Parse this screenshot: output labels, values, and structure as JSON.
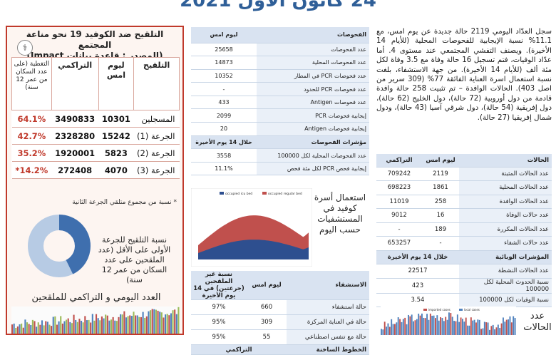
{
  "page_title": "24 كانون الأول 2021",
  "vaccination": {
    "heading_line1": "التلقيح ضد الكوفيد 19  نحو مناعة المجتمع",
    "heading_line2": "(المصدر : قاعدة بيانات Impact)",
    "headers": {
      "label": "التلقيح",
      "yesterday": "ليوم امس",
      "cumulative": "التراكمي",
      "coverage": "التغطية (على عدد السكان من عمر 12 سنة)"
    },
    "rows": [
      {
        "label": "المسجلين",
        "yesterday": "10301",
        "cumulative": "3490833",
        "coverage": "64.1%"
      },
      {
        "label": "الجرعة (1)",
        "yesterday": "15242",
        "cumulative": "2328280",
        "coverage": "42.7%"
      },
      {
        "label": "الجرعة (2)",
        "yesterday": "5823",
        "cumulative": "1920001",
        "coverage": "35.2%"
      },
      {
        "label": "الجرعة (3)",
        "yesterday": "4070",
        "cumulative": "272408",
        "coverage": "14.2%*"
      }
    ],
    "footnote": "* نسبة من مجموع متلقي الجرعة الثانية",
    "donut_text": "نسبة التلقيح للجرعة الأولى على الأقل (عدد الملقحين على عدد السكان من عمر 12 سنة)",
    "donut_value": 0.427,
    "donut_colors": {
      "filled": "#3f6fae",
      "empty": "#b7cbe4"
    },
    "daily_chart_title": "العدد اليومي و التراكمي للملقحين"
  },
  "tests": {
    "header": {
      "label": "الفحوصات",
      "value": "ليوم امس"
    },
    "rows": [
      {
        "label": "عدد الفحوصات",
        "value": "25658"
      },
      {
        "label": "عدد الفحوصات المحلية",
        "value": "14873"
      },
      {
        "label": "عدد فحوصات PCR في المطار",
        "value": "10352"
      },
      {
        "label": "عدد فحوصات PCR للحدود",
        "value": "-"
      },
      {
        "label": "عدد فحوصات Antigen",
        "value": "433"
      },
      {
        "label": "إيجابية فحوصات PCR",
        "value": "2099"
      },
      {
        "label": "إيجابية فحوصات Antigen",
        "value": "20"
      }
    ],
    "indicators_header": {
      "label": "مؤشرات الفحوصات",
      "value": "خلال 14 يوم الأخيرة"
    },
    "indicator_rows": [
      {
        "label": "عدد الفحوصات المحلية لكل 100000",
        "value": "3558"
      },
      {
        "label": "إيجابية فحص PCR لكل مئة فحص",
        "value": "11.1%"
      }
    ]
  },
  "hospital": {
    "chart_text": "استعمال أسرة كوفيد في المستشفيات حسب اليوم",
    "legend": [
      "occupied icu bed",
      "occupied regular bed"
    ],
    "header": {
      "label": "الاستشفاء",
      "yesterday": "ليوم امس",
      "rate": "نسبة غير الملقحين (جرعتين) في 14 يوم الأخيرة"
    },
    "rows": [
      {
        "label": "حالة استشفاء",
        "yesterday": "660",
        "rate": "97%"
      },
      {
        "label": "حالة في العناية المركزة",
        "yesterday": "309",
        "rate": "95%"
      },
      {
        "label": "حالة مع تنفس اصطناعي",
        "yesterday": "55",
        "rate": "95%"
      }
    ],
    "footer": {
      "label": "الخطوط الساخنة",
      "value": "التراكمي"
    }
  },
  "summary": {
    "paragraph": "سجل العدّاد اليومي 2119 حالة جديدة عن يوم امس، مع 11.1% نسبة الإيجابية للفحوصات المحلية (للأيام 14 الأخيرة). ويصنف التفشي المجتمعي عند مستوى 4. أما عدّاد الوفيات، فتم تسجيل 16 حالة وفاة مع 3.5 وفاة لكل مئة ألف (للأيام 14 الأخيرة). من جهة الاستشفاء، بلغت نسبة استعمال اسرة العناية الفائقة 77% (309 سرير من اصل 403). الحالات الوافدة – تم تثبيت 258 حالة وافدة قادمة من دول أوروبية (72 حالة)، دول الخليج (62 حالة)، دول إفريقية (54 حالة)، دول شرقي آسيا (43 حالة)، ودول شمال إفريقيا (27 حالة)."
  },
  "cases": {
    "header": {
      "label": "الحالات",
      "yesterday": "ليوم امس",
      "cumulative": "التراكمي"
    },
    "rows": [
      {
        "label": "عدد الحالات المثبتة",
        "yesterday": "2119",
        "cumulative": "709242"
      },
      {
        "label": "عدد الحالات المحلية",
        "yesterday": "1861",
        "cumulative": "698223"
      },
      {
        "label": "عدد الحالات الوافدة",
        "yesterday": "258",
        "cumulative": "11019"
      },
      {
        "label": "عدد حالات الوفاة",
        "yesterday": "16",
        "cumulative": "9012"
      },
      {
        "label": "عدد الحالات المكررة",
        "yesterday": "189",
        "cumulative": "-"
      },
      {
        "label": "عدد حالات الشفاء",
        "yesterday": "-",
        "cumulative": "653257"
      }
    ],
    "indicators_header": {
      "label": "المؤشرات الوبائية",
      "value": "خلال 14 يوم الأخيرة"
    },
    "indicator_rows": [
      {
        "label": "عدد الحالات النشطة",
        "value": "22517"
      },
      {
        "label": "نسبة الحدوث المحلية لكل 100000",
        "value": "423"
      },
      {
        "label": "نسبة الوفيات لكل 100000",
        "value": "3.54"
      }
    ],
    "chart_title": "عدد الحالات",
    "chart_legend": [
      "imported cases",
      "local cases"
    ]
  }
}
